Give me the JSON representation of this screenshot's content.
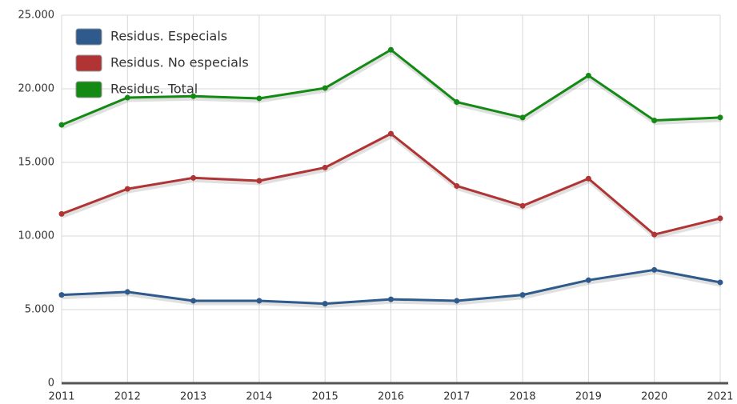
{
  "chart_data": {
    "type": "line",
    "categories": [
      "2011",
      "2012",
      "2013",
      "2014",
      "2015",
      "2016",
      "2017",
      "2018",
      "2019",
      "2020",
      "2021"
    ],
    "series": [
      {
        "name": "Residus. Especials",
        "color": "#2e5a8c",
        "values": [
          6000,
          6200,
          5600,
          5600,
          5400,
          5700,
          5600,
          6000,
          7000,
          7700,
          6850
        ]
      },
      {
        "name": "Residus. No especials",
        "color": "#b03434",
        "values": [
          11500,
          13200,
          13950,
          13750,
          14650,
          16950,
          13400,
          12050,
          13900,
          10100,
          11200
        ]
      },
      {
        "name": "Residus. Total",
        "color": "#138a13",
        "values": [
          17550,
          19400,
          19500,
          19350,
          20050,
          22650,
          19100,
          18050,
          20900,
          17850,
          18050
        ]
      }
    ],
    "ylim": [
      0,
      25000
    ],
    "yticks": [
      0,
      {
        "value": 5000,
        "label": "5.000"
      },
      {
        "value": 10000,
        "label": "10.000"
      },
      {
        "value": 15000,
        "label": "15.000"
      },
      {
        "value": 20000,
        "label": "20.000"
      },
      {
        "value": 25000,
        "label": "25.000"
      }
    ],
    "grid": true,
    "legend": "top-left"
  }
}
